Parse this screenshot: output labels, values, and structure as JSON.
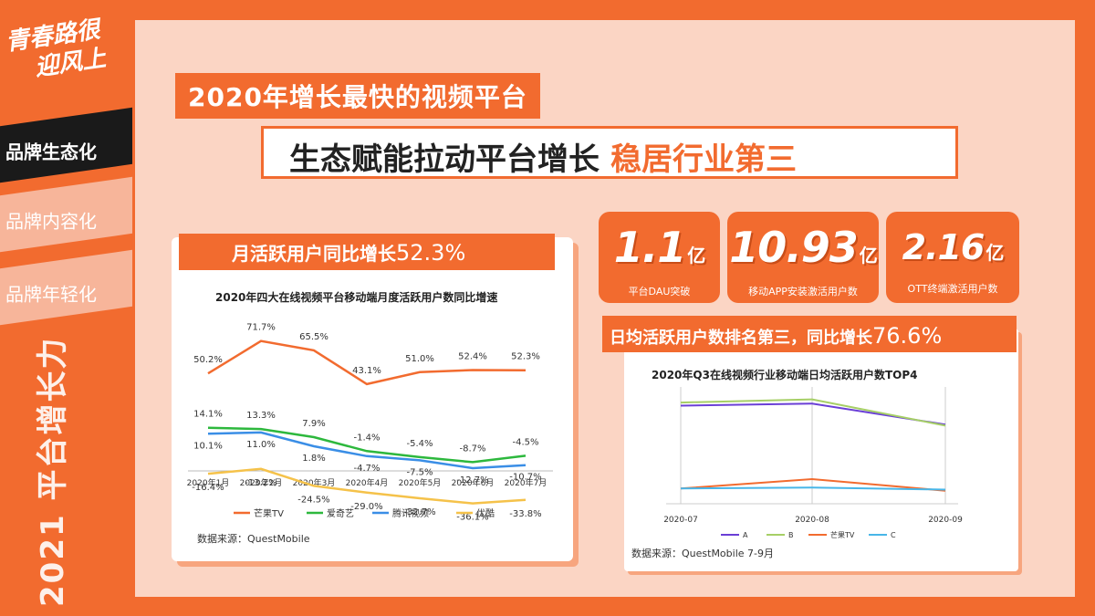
{
  "sidebar": {
    "logo_line1": "青春路很",
    "logo_line2": "迎风上",
    "nav": [
      "品牌生态化",
      "品牌内容化",
      "品牌年轻化"
    ],
    "vertical_slogan": "2021 平台增长力"
  },
  "headline": {
    "line1": "2020年增长最快的视频平台",
    "line2_main": "生态赋能拉动平台增长",
    "line2_accent": "稳居行业第三"
  },
  "left_card": {
    "banner_text": "月活跃用户同比增长",
    "banner_pct": "52.3%",
    "source": "数据来源：QuestMobile"
  },
  "stats": [
    {
      "value": "1.1",
      "unit": "亿",
      "label": "平台DAU突破"
    },
    {
      "value": "10.93",
      "unit": "亿",
      "label": "移动APP安装激活用户数"
    },
    {
      "value": "2.16",
      "unit": "亿",
      "label": "OTT终端激活用户数"
    }
  ],
  "right_card": {
    "banner_text": "日均活跃用户数排名第三，同比增长",
    "banner_pct": "76.6%",
    "source": "数据来源：QuestMobile 7-9月"
  },
  "colors": {
    "orange": "#f26b2f",
    "green": "#2db83d",
    "blue": "#3a8ee6",
    "yellow": "#f5c24a",
    "purple": "#6a3fd6",
    "lightgreen": "#a6cf66",
    "cyan": "#48b6e8"
  },
  "chart_data": [
    {
      "type": "line",
      "title": "2020年四大在线视频平台移动端月度活跃用户数同比增速",
      "categories": [
        "2020年1月",
        "2020年2月",
        "2020年3月",
        "2020年4月",
        "2020年5月",
        "2020年6月",
        "2020年7月"
      ],
      "series": [
        {
          "name": "芒果TV",
          "values": [
            50.2,
            71.7,
            65.5,
            43.1,
            51.0,
            52.4,
            52.3
          ],
          "labels": [
            "50.2%",
            "71.7%",
            "65.5%",
            "43.1%",
            "51.0%",
            "52.4%",
            "52.3%"
          ],
          "color": "#f26b2f"
        },
        {
          "name": "爱奇艺",
          "values": [
            14.1,
            13.3,
            7.9,
            -1.4,
            -5.4,
            -8.7,
            -4.5
          ],
          "labels": [
            "14.1%",
            "13.3%",
            "7.9%",
            "-1.4%",
            "-5.4%",
            "-8.7%",
            "-4.5%"
          ],
          "color": "#2db83d"
        },
        {
          "name": "腾讯视频",
          "values": [
            10.1,
            11.0,
            1.8,
            -4.7,
            -7.5,
            -12.7,
            -10.7
          ],
          "labels": [
            "10.1%",
            "11.0%",
            "1.8%",
            "-4.7%",
            "-7.5%",
            "-12.7%",
            "-10.7%"
          ],
          "color": "#3a8ee6"
        },
        {
          "name": "优酷",
          "values": [
            -16.4,
            -13.2,
            -24.5,
            -29.0,
            -32.7,
            -36.1,
            -33.8
          ],
          "labels": [
            "-16.4%",
            "-13.2%",
            "-24.5%",
            "-29.0%",
            "-32.7%",
            "-36.1%",
            "-33.8%"
          ],
          "color": "#f5c24a"
        }
      ]
    },
    {
      "type": "line",
      "title": "2020年Q3在线视频行业移动端日均活跃用户数TOP4",
      "categories": [
        "2020-07",
        "2020-08",
        "2020-09"
      ],
      "series": [
        {
          "name": "A",
          "values": [
            90,
            92,
            72
          ],
          "color": "#6a3fd6"
        },
        {
          "name": "B",
          "values": [
            93,
            96,
            71
          ],
          "color": "#a6cf66"
        },
        {
          "name": "芒果TV",
          "values": [
            11,
            20,
            9
          ],
          "color": "#f26b2f"
        },
        {
          "name": "C",
          "values": [
            11,
            12,
            10
          ],
          "color": "#48b6e8"
        }
      ]
    }
  ]
}
